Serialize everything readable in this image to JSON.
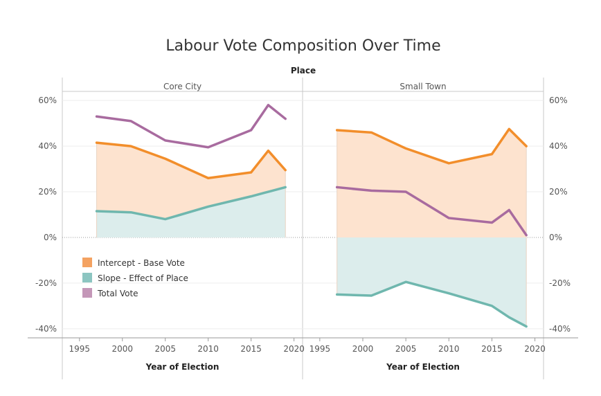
{
  "chart_data": {
    "type": "area",
    "title": "Labour Vote Composition Over Time",
    "facet_header": "Place",
    "xlabel": "Year of Election",
    "x_ticks": [
      1995,
      2000,
      2005,
      2010,
      2015,
      2020
    ],
    "y_ticks": [
      "60%",
      "40%",
      "20%",
      "0%",
      "-20%",
      "-40%"
    ],
    "y_tick_values": [
      60,
      40,
      20,
      0,
      -20,
      -40
    ],
    "xlim": [
      1993,
      2021
    ],
    "ylim": [
      -44,
      64
    ],
    "legend_position": "bottom-left",
    "legend": [
      {
        "label": "Intercept - Base Vote",
        "color": "#f4a261"
      },
      {
        "label": "Slope - Effect of Place",
        "color": "#8cc5c1"
      },
      {
        "label": "Total Vote",
        "color": "#c497b8"
      }
    ],
    "colors": {
      "intercept_line": "#f28e2b",
      "intercept_fill": "#fde3cf",
      "slope_line": "#6fb7ae",
      "slope_fill": "#dcedec",
      "total_line": "#a86b9f"
    },
    "panels": [
      {
        "name": "Core City",
        "x": [
          1997,
          2001,
          2005,
          2010,
          2015,
          2017,
          2019
        ],
        "series": [
          {
            "name": "Intercept - Base Vote",
            "values": [
              41.5,
              40,
              34.5,
              26,
              28.5,
              38,
              29.5
            ]
          },
          {
            "name": "Slope - Effect of Place",
            "values": [
              11.5,
              11,
              8,
              13.5,
              18,
              20,
              22
            ]
          },
          {
            "name": "Total Vote",
            "values": [
              53,
              51,
              42.5,
              39.5,
              47,
              58,
              52
            ]
          }
        ]
      },
      {
        "name": "Small Town",
        "x": [
          1997,
          2001,
          2005,
          2010,
          2015,
          2017,
          2019
        ],
        "series": [
          {
            "name": "Intercept - Base Vote",
            "values": [
              47,
              46,
              39,
              32.5,
              36.5,
              47.5,
              40
            ]
          },
          {
            "name": "Slope - Effect of Place",
            "values": [
              -25,
              -25.5,
              -19.5,
              -24.5,
              -30,
              -35,
              -39
            ]
          },
          {
            "name": "Total Vote",
            "values": [
              22,
              20.5,
              20,
              8.5,
              6.5,
              12,
              1
            ]
          }
        ]
      }
    ]
  }
}
